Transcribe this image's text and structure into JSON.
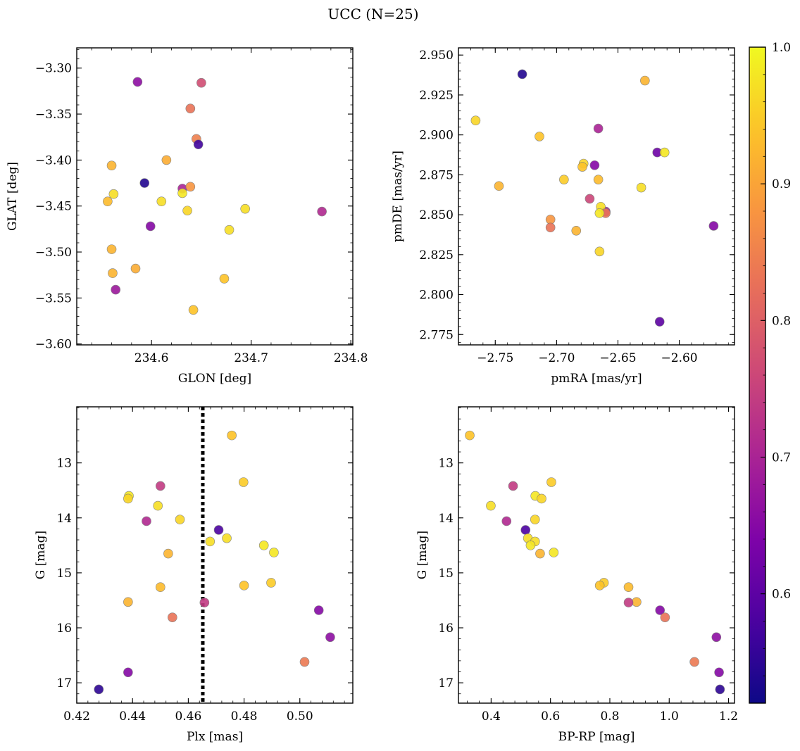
{
  "title": "UCC (N=25)",
  "colorbar": {
    "range": [
      0.52,
      1.0
    ],
    "ticks": [
      0.6,
      0.7,
      0.8,
      0.9,
      1.0
    ],
    "tick_labels": [
      "0.6",
      "0.7",
      "0.8",
      "0.9",
      "1.0"
    ],
    "colormap": "plasma"
  },
  "chart_data": [
    {
      "type": "scatter",
      "title": "",
      "xlabel": "GLON [deg]",
      "ylabel": "GLAT [deg]",
      "xlim": [
        234.525,
        234.802
      ],
      "ylim": [
        -3.601,
        -3.278
      ],
      "xticks": [
        234.6,
        234.7,
        234.8
      ],
      "xtick_labels": [
        "234.6",
        "234.7",
        "234.8"
      ],
      "yticks": [
        -3.6,
        -3.55,
        -3.5,
        -3.45,
        -3.4,
        -3.35,
        -3.3
      ],
      "ytick_labels": [
        "−3.60",
        "−3.55",
        "−3.50",
        "−3.45",
        "−3.40",
        "−3.35",
        "−3.30"
      ],
      "y_inverted": false,
      "x": [
        234.586,
        234.65,
        234.639,
        234.645,
        234.647,
        234.615,
        234.56,
        234.593,
        234.631,
        234.639,
        234.562,
        234.631,
        234.556,
        234.61,
        234.636,
        234.694,
        234.599,
        234.678,
        234.771,
        234.56,
        234.561,
        234.584,
        234.673,
        234.564,
        234.642
      ],
      "y": [
        -3.315,
        -3.316,
        -3.344,
        -3.377,
        -3.383,
        -3.4,
        -3.406,
        -3.425,
        -3.431,
        -3.429,
        -3.437,
        -3.436,
        -3.445,
        -3.445,
        -3.455,
        -3.453,
        -3.472,
        -3.476,
        -3.456,
        -3.497,
        -3.523,
        -3.518,
        -3.529,
        -3.541,
        -3.563
      ],
      "color_values": [
        0.66,
        0.77,
        0.83,
        0.85,
        0.57,
        0.91,
        0.92,
        0.54,
        0.7,
        0.88,
        0.97,
        0.98,
        0.93,
        0.97,
        0.96,
        0.97,
        0.65,
        0.97,
        0.71,
        0.92,
        0.92,
        0.91,
        0.94,
        0.68,
        0.94
      ]
    },
    {
      "type": "scatter",
      "title": "",
      "xlabel": "pmRA [mas/yr]",
      "ylabel": "pmDE [mas/yr]",
      "xlim": [
        -2.78,
        -2.555
      ],
      "ylim": [
        2.7685,
        2.9545
      ],
      "xticks": [
        -2.75,
        -2.7,
        -2.65,
        -2.6
      ],
      "xtick_labels": [
        "−2.75",
        "−2.70",
        "−2.65",
        "−2.60"
      ],
      "yticks": [
        2.775,
        2.8,
        2.825,
        2.85,
        2.875,
        2.9,
        2.925,
        2.95
      ],
      "ytick_labels": [
        "2.775",
        "2.800",
        "2.825",
        "2.850",
        "2.875",
        "2.900",
        "2.925",
        "2.950"
      ],
      "y_inverted": false,
      "x": [
        -2.728,
        -2.628,
        -2.766,
        -2.714,
        -2.666,
        -2.618,
        -2.612,
        -2.678,
        -2.669,
        -2.679,
        -2.694,
        -2.666,
        -2.747,
        -2.631,
        -2.673,
        -2.66,
        -2.664,
        -2.66,
        -2.665,
        -2.705,
        -2.705,
        -2.684,
        -2.572,
        -2.665,
        -2.616
      ],
      "y": [
        2.938,
        2.934,
        2.909,
        2.899,
        2.904,
        2.889,
        2.889,
        2.882,
        2.881,
        2.88,
        2.872,
        2.872,
        2.868,
        2.867,
        2.86,
        2.852,
        2.855,
        2.851,
        2.851,
        2.847,
        2.842,
        2.84,
        2.843,
        2.827,
        2.783
      ],
      "color_values": [
        0.54,
        0.92,
        0.96,
        0.94,
        0.7,
        0.62,
        0.98,
        0.96,
        0.65,
        0.94,
        0.95,
        0.93,
        0.92,
        0.97,
        0.76,
        0.7,
        0.97,
        0.83,
        0.98,
        0.88,
        0.83,
        0.92,
        0.65,
        0.96,
        0.6
      ]
    },
    {
      "type": "scatter",
      "title": "",
      "xlabel": "Plx [mas]",
      "ylabel": "G [mag]",
      "xlim": [
        0.42,
        0.519
      ],
      "ylim": [
        17.37,
        11.98
      ],
      "xticks": [
        0.42,
        0.44,
        0.46,
        0.48,
        0.5
      ],
      "xtick_labels": [
        "0.42",
        "0.44",
        "0.46",
        "0.48",
        "0.50"
      ],
      "yticks": [
        13,
        14,
        15,
        16,
        17
      ],
      "ytick_labels": [
        "13",
        "14",
        "15",
        "16",
        "17"
      ],
      "y_inverted": true,
      "vline": {
        "x": 0.4652,
        "style": "dotted",
        "color": "#000000"
      },
      "x": [
        0.4756,
        0.4798,
        0.45,
        0.4387,
        0.4384,
        0.4491,
        0.445,
        0.457,
        0.4709,
        0.4738,
        0.4678,
        0.4871,
        0.4907,
        0.4528,
        0.4897,
        0.48,
        0.45,
        0.4384,
        0.4658,
        0.5068,
        0.4543,
        0.5109,
        0.5017,
        0.4384,
        0.4279
      ],
      "y": [
        12.5,
        13.35,
        13.42,
        13.6,
        13.65,
        13.78,
        14.06,
        14.03,
        14.22,
        14.37,
        14.43,
        14.5,
        14.63,
        14.65,
        15.18,
        15.23,
        15.26,
        15.53,
        15.54,
        15.68,
        15.81,
        16.17,
        16.62,
        16.81,
        17.12
      ],
      "color_values": [
        0.94,
        0.95,
        0.74,
        0.98,
        0.96,
        0.97,
        0.71,
        0.96,
        0.58,
        0.97,
        0.97,
        0.98,
        0.98,
        0.92,
        0.95,
        0.94,
        0.93,
        0.92,
        0.74,
        0.65,
        0.83,
        0.66,
        0.84,
        0.65,
        0.55
      ]
    },
    {
      "type": "scatter",
      "title": "",
      "xlabel": "BP-RP [mag]",
      "ylabel": "G [mag]",
      "xlim": [
        0.29,
        1.22
      ],
      "ylim": [
        17.37,
        11.98
      ],
      "xticks": [
        0.4,
        0.6,
        0.8,
        1.0,
        1.2
      ],
      "xtick_labels": [
        "0.4",
        "0.6",
        "0.8",
        "1.0",
        "1.2"
      ],
      "yticks": [
        13,
        14,
        15,
        16,
        17
      ],
      "ytick_labels": [
        "13",
        "14",
        "15",
        "16",
        "17"
      ],
      "y_inverted": true,
      "x": [
        0.328,
        0.603,
        0.474,
        0.549,
        0.57,
        0.399,
        0.452,
        0.548,
        0.516,
        0.524,
        0.548,
        0.533,
        0.611,
        0.565,
        0.78,
        0.766,
        0.863,
        0.89,
        0.863,
        0.969,
        0.986,
        1.159,
        1.085,
        1.168,
        1.171
      ],
      "y": [
        12.5,
        13.35,
        13.42,
        13.6,
        13.65,
        13.78,
        14.06,
        14.03,
        14.22,
        14.37,
        14.43,
        14.5,
        14.63,
        14.65,
        15.18,
        15.23,
        15.26,
        15.53,
        15.54,
        15.68,
        15.81,
        16.17,
        16.62,
        16.81,
        17.12
      ],
      "color_values": [
        0.94,
        0.95,
        0.74,
        0.98,
        0.96,
        0.97,
        0.71,
        0.96,
        0.58,
        0.97,
        0.97,
        0.98,
        0.98,
        0.92,
        0.95,
        0.94,
        0.93,
        0.92,
        0.74,
        0.65,
        0.83,
        0.66,
        0.84,
        0.65,
        0.55
      ]
    }
  ]
}
